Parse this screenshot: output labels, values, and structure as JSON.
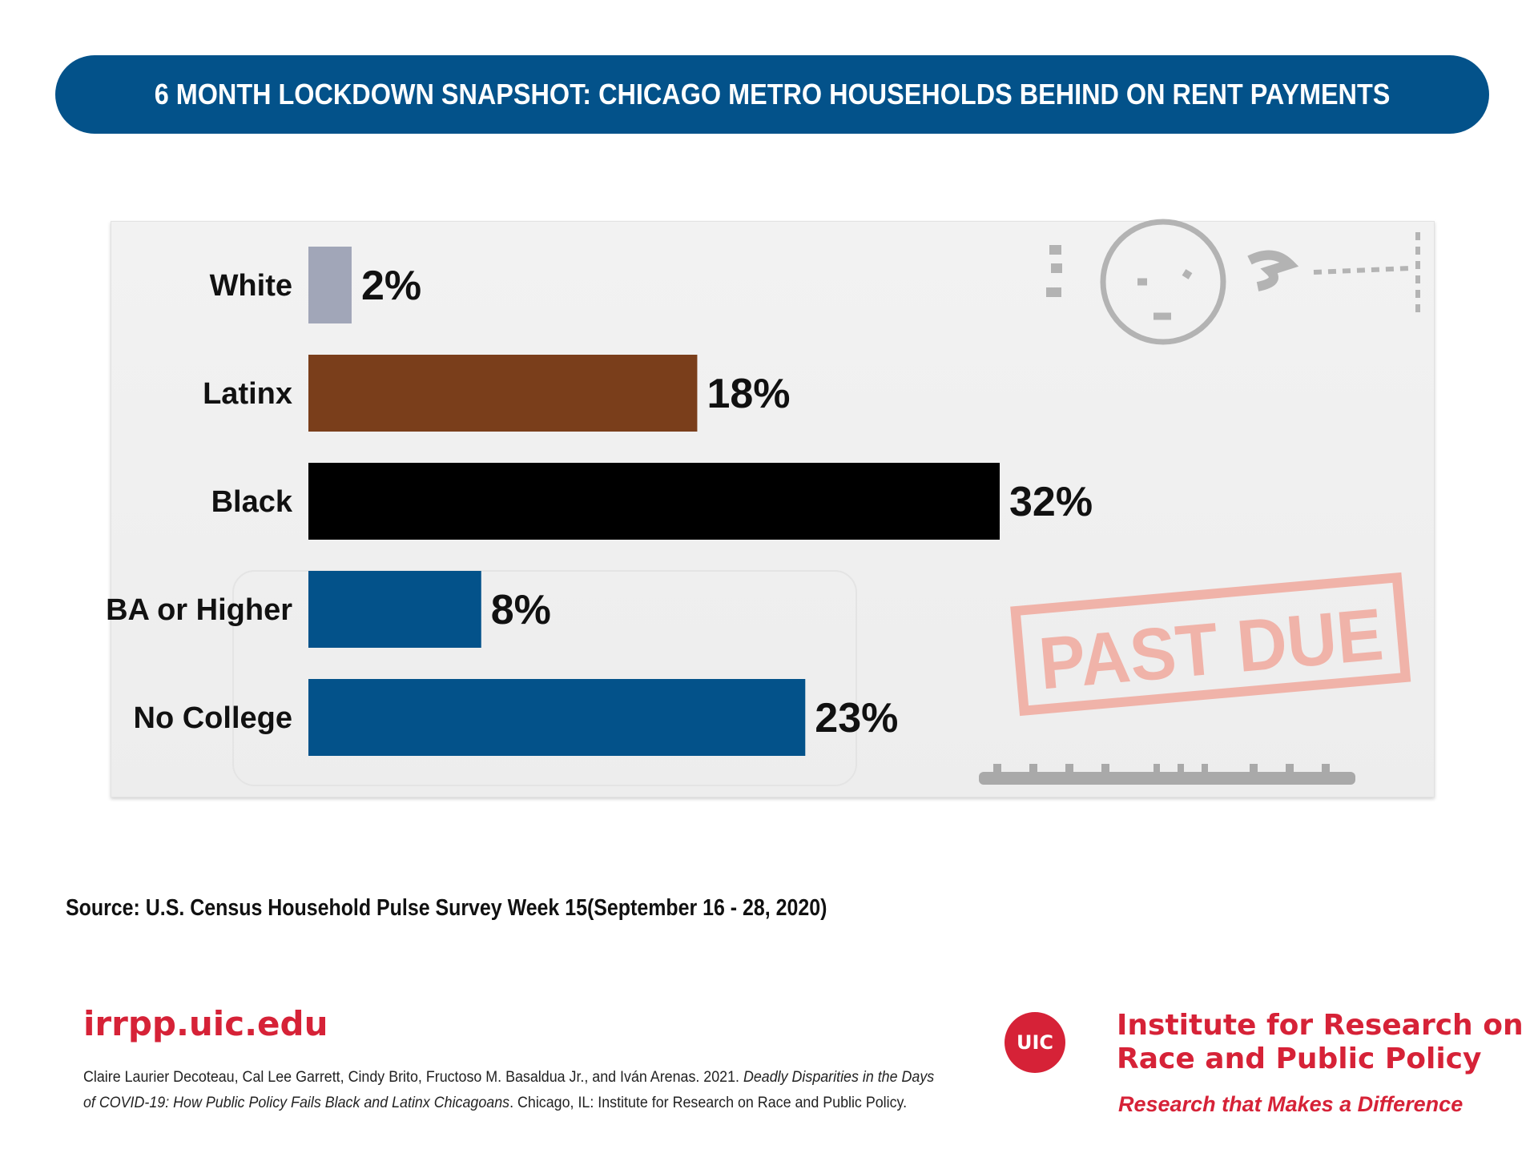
{
  "header": {
    "title": "6 MONTH LOCKDOWN SNAPSHOT: CHICAGO METRO HOUSEHOLDS BEHIND ON RENT PAYMENTS"
  },
  "chart_data": {
    "type": "bar",
    "orientation": "horizontal",
    "categories": [
      "White",
      "Latinx",
      "Black",
      "BA or Higher",
      "No College"
    ],
    "values": [
      2,
      18,
      32,
      8,
      23
    ],
    "value_labels": [
      "2%",
      "18%",
      "32%",
      "8%",
      "23%"
    ],
    "bar_colors": [
      "#a1a6b8",
      "#7a3e1b",
      "#000000",
      "#03528a",
      "#03528a"
    ],
    "unit": "%",
    "xlim": [
      0,
      32
    ],
    "grid": false,
    "legend": "none"
  },
  "decor": {
    "stamp_text": "PAST DUE",
    "stamp_color": "#f0b3a9"
  },
  "source": {
    "text": "Source: U.S. Census Household Pulse Survey Week 15(September 16 - 28, 2020)"
  },
  "footer": {
    "url": "irrpp.uic.edu",
    "citation_authors": "Claire Laurier Decoteau, Cal Lee Garrett, Cindy Brito, Fructoso M. Basaldua Jr., and Iván Arenas. 2021. ",
    "citation_title": "Deadly Disparities in the Days of COVID-19: How Public Policy Fails Black and Latinx Chicagoans",
    "citation_rest": ". Chicago, IL: Institute for Research on Race and Public Policy.",
    "logo_text": "UIC",
    "institute_line1": "Institute for Research on",
    "institute_line2": "Race and Public Policy",
    "tagline": "Research that Makes a Difference",
    "brand_color": "#d62237"
  }
}
